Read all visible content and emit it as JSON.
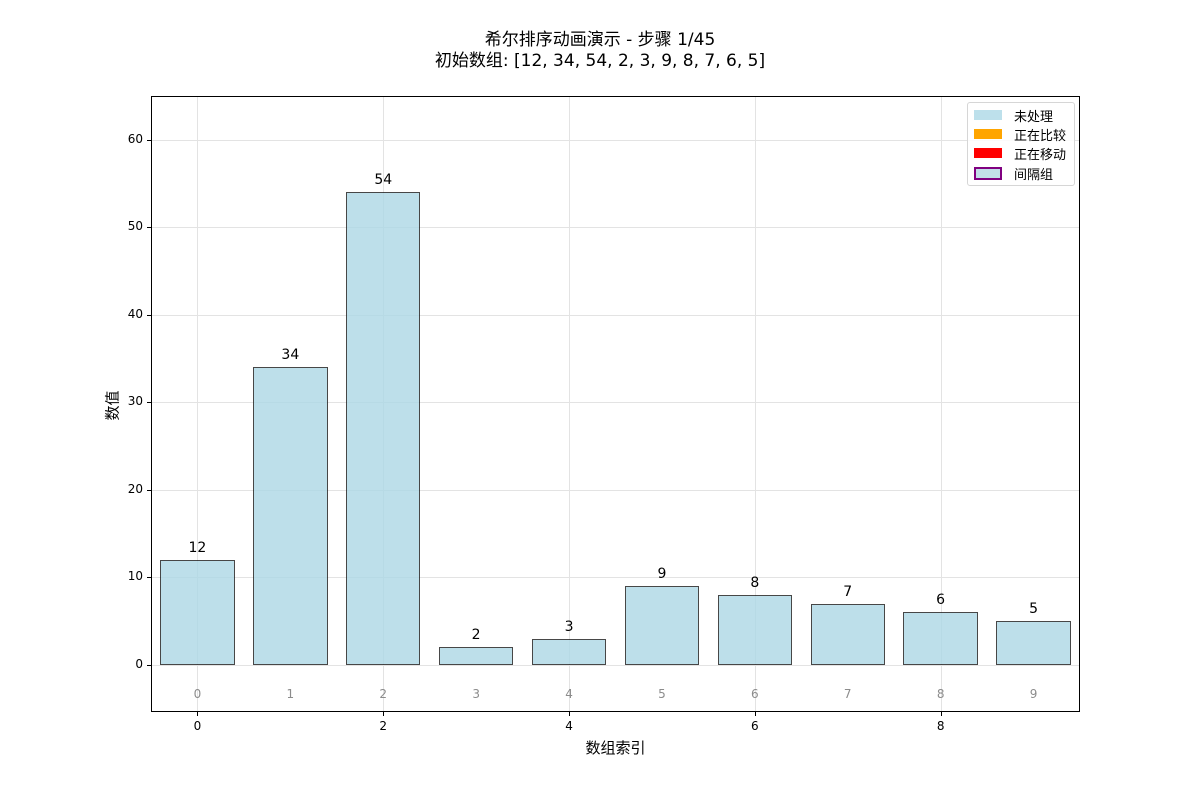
{
  "title": {
    "line1": "希尔排序动画演示 - 步骤 1/45",
    "line2": "初始数组: [12, 34, 54, 2, 3, 9, 8, 7, 6, 5]"
  },
  "axes": {
    "xlabel": "数组索引",
    "ylabel": "数值",
    "yticks": [
      "0",
      "10",
      "20",
      "30",
      "40",
      "50",
      "60"
    ],
    "xticks": [
      "0",
      "2",
      "4",
      "6",
      "8"
    ]
  },
  "legend": {
    "items": [
      {
        "label": "未处理",
        "color": "#add8e6"
      },
      {
        "label": "正在比较",
        "color": "#ffa500"
      },
      {
        "label": "正在移动",
        "color": "#ff0000"
      },
      {
        "label": "间隔组",
        "color": "#add8e6",
        "edge": "#800080"
      }
    ]
  },
  "bars": {
    "values": [
      "12",
      "34",
      "54",
      "2",
      "3",
      "9",
      "8",
      "7",
      "6",
      "5"
    ],
    "indices": [
      "0",
      "1",
      "2",
      "3",
      "4",
      "5",
      "6",
      "7",
      "8",
      "9"
    ]
  },
  "chart_data": {
    "type": "bar",
    "title": "希尔排序动画演示 - 步骤 1/45\n初始数组: [12, 34, 54, 2, 3, 9, 8, 7, 6, 5]",
    "categories": [
      0,
      1,
      2,
      3,
      4,
      5,
      6,
      7,
      8,
      9
    ],
    "values": [
      12,
      34,
      54,
      2,
      3,
      9,
      8,
      7,
      6,
      5
    ],
    "xlabel": "数组索引",
    "ylabel": "数值",
    "ylim": [
      -5.4,
      65
    ],
    "xlim": [
      -0.5,
      9.5
    ],
    "yticks": [
      0,
      10,
      20,
      30,
      40,
      50,
      60
    ],
    "xticks": [
      0,
      2,
      4,
      6,
      8
    ],
    "grid": true,
    "bar_color": "#add8e6",
    "bar_edge_color": "#000000",
    "bar_labels": [
      "12",
      "34",
      "54",
      "2",
      "3",
      "9",
      "8",
      "7",
      "6",
      "5"
    ],
    "index_annotations": [
      "0",
      "1",
      "2",
      "3",
      "4",
      "5",
      "6",
      "7",
      "8",
      "9"
    ],
    "legend": {
      "position": "upper right",
      "entries": [
        "未处理",
        "正在比较",
        "正在移动",
        "间隔组"
      ],
      "colors": [
        "#add8e6",
        "#ffa500",
        "#ff0000",
        "#add8e6"
      ]
    }
  }
}
